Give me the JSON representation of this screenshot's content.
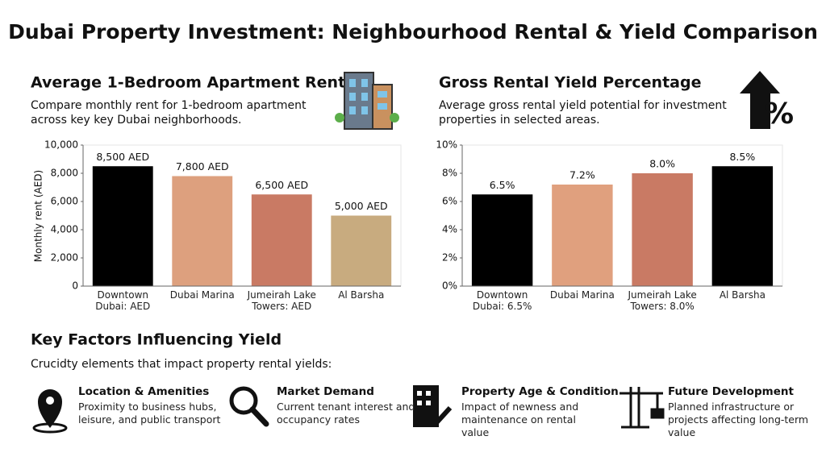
{
  "title": "Dubai Property Investment: Neighbourhood Rental & Yield Comparison",
  "chart_data": [
    {
      "type": "bar",
      "title": "Average 1-Bedroom Apartment Rent",
      "subtitle": "Compare monthly rent for 1-bedroom apartment across key key Dubai neighborhoods.",
      "y_label": "Monthly rent (AED)",
      "categories": [
        "Downtown Dubai: AED",
        "Dubai Marina",
        "Jumeirah Lake Towers: AED",
        "Al Barsha"
      ],
      "values": [
        8500,
        7800,
        6500,
        5000
      ],
      "value_labels": [
        "8,500 AED",
        "7,800 AED",
        "6,500 AED",
        "5,000 AED"
      ],
      "colors": [
        "#000000",
        "#dda07e",
        "#c97a64",
        "#c8ab7f"
      ],
      "ylim": [
        0,
        10000
      ],
      "yticks": [
        0,
        {
          "value": 2000,
          "label": "2,000"
        },
        {
          "value": 4000,
          "label": "4,000"
        },
        {
          "value": 6000,
          "label": "6,000"
        },
        {
          "value": 8000,
          "label": "8,000"
        },
        {
          "value": 10000,
          "label": "10,000"
        }
      ]
    },
    {
      "type": "bar",
      "title": "Gross Rental Yield Percentage",
      "subtitle": "Average gross rental yield potential for investment properties in selected areas.",
      "categories": [
        "Downtown Dubai: 6.5%",
        "Dubai Marina",
        "Jumeirah Lake Towers: 8.0%",
        "Al Barsha"
      ],
      "values": [
        6.5,
        7.2,
        8.0,
        8.5
      ],
      "value_labels": [
        "6.5%",
        "7.2%",
        "8.0%",
        "8.5%"
      ],
      "colors": [
        "#000000",
        "#e0a07e",
        "#c97a64",
        "#000000"
      ],
      "ylim": [
        0,
        10
      ],
      "yticks": [
        {
          "value": 0,
          "label": "0%"
        },
        {
          "value": 2,
          "label": "2%"
        },
        {
          "value": 4,
          "label": "4%"
        },
        {
          "value": 6,
          "label": "6%"
        },
        {
          "value": 8,
          "label": "8%"
        },
        {
          "value": 10,
          "label": "10%"
        }
      ]
    }
  ],
  "factors": {
    "title": "Key Factors Influencing Yield",
    "subtitle": "Crucidty elements that impact property rental yields:",
    "items": [
      {
        "title": "Location & Amenities",
        "text": "Proximity to business hubs, leisure, and public transport"
      },
      {
        "title": "Market Demand",
        "text": "Current tenant interest and occupancy rates"
      },
      {
        "title": "Property Age & Condition",
        "text": "Impact of newness and maintenance on rental value"
      },
      {
        "title": "Future Development",
        "text": "Planned infrastructure or projects affecting long-term value"
      }
    ]
  }
}
